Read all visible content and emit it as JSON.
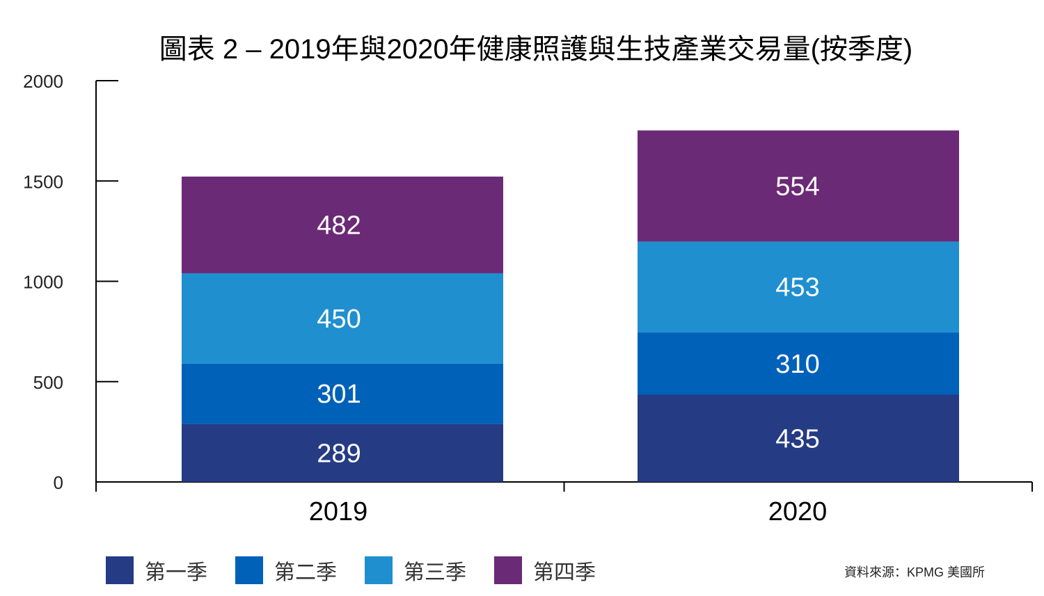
{
  "chart_data": {
    "type": "bar",
    "stacked": true,
    "title": "圖表 2 – 2019年與2020年健康照護與生技產業交易量(按季度)",
    "categories": [
      "2019",
      "2020"
    ],
    "series": [
      {
        "name": "第一季",
        "values": [
          289,
          435
        ],
        "color": "#253b84"
      },
      {
        "name": "第二季",
        "values": [
          301,
          310
        ],
        "color": "#0061b9"
      },
      {
        "name": "第三季",
        "values": [
          450,
          453
        ],
        "color": "#1f8fd0"
      },
      {
        "name": "第四季",
        "values": [
          482,
          554
        ],
        "color": "#6b2a75"
      }
    ],
    "ylim": [
      0,
      2000
    ],
    "yticks": [
      "0",
      "500",
      "1000",
      "1500",
      "2000"
    ],
    "xlabel": "",
    "ylabel": "",
    "legend_position": "bottom-left",
    "grid": false
  },
  "source": "資料來源：KPMG 美國所"
}
